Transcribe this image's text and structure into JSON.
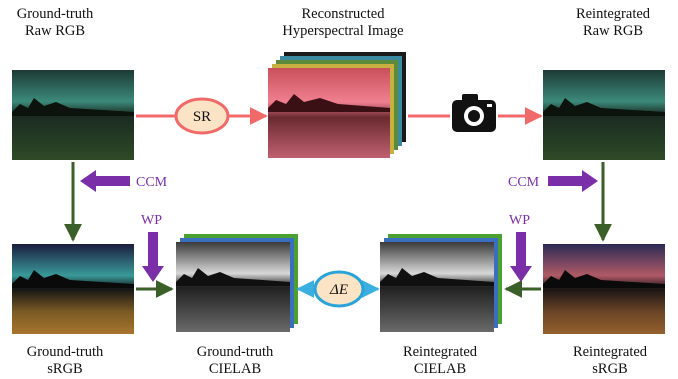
{
  "labels": {
    "gt_raw": [
      "Ground-truth",
      "Raw RGB"
    ],
    "recon_hsi": [
      "Reconstructed",
      "Hyperspectral Image"
    ],
    "re_raw": [
      "Reintegrated",
      "Raw RGB"
    ],
    "gt_srgb": [
      "Ground-truth",
      "sRGB"
    ],
    "gt_cielab": [
      "Ground-truth",
      "CIELAB"
    ],
    "re_cielab": [
      "Reintegrated",
      "CIELAB"
    ],
    "re_srgb": [
      "Reintegrated",
      "sRGB"
    ]
  },
  "ops": {
    "sr": "SR",
    "ccm_left": "CCM",
    "ccm_right": "CCM",
    "wp_left": "WP",
    "wp_right": "WP",
    "delta_e": "ΔE"
  },
  "icons": {
    "camera": "camera-icon"
  },
  "colors": {
    "red_arrow": "#f06a6a",
    "green_arrow": "#3a5f28",
    "purple_arrow": "#7a2fa8",
    "blue_arrow": "#3bb0e0",
    "sr_ellipse": "#f06a6a",
    "delta_ellipse": "#2aa4d8",
    "delta_fill": "#fbe3c6"
  }
}
